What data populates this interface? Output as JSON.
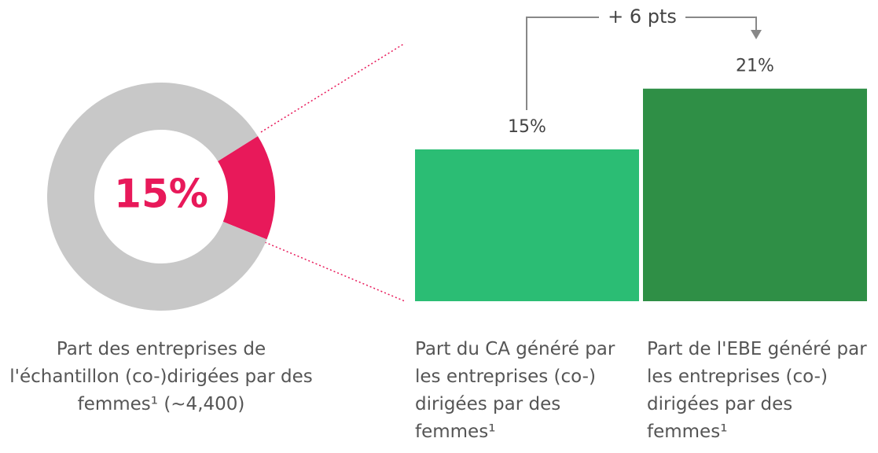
{
  "chart_data": [
    {
      "type": "donut",
      "values": [
        15,
        85
      ],
      "value_labels": [
        "15%",
        null
      ],
      "colors": [
        "#e8195a",
        "#c8c8c8"
      ],
      "caption": "Part des entreprises de l'échantillon (co-)dirigées par des femmes¹ (~4,400)"
    },
    {
      "type": "bar",
      "categories": [
        "Part du CA généré par les entreprises (co-) dirigées par des femmes¹",
        "Part de l'EBE généré par les entreprises (co-) dirigées par des femmes¹"
      ],
      "values": [
        15,
        21
      ],
      "value_labels": [
        "15%",
        "21%"
      ],
      "colors": [
        "#2bbd74",
        "#2f8f46"
      ],
      "annotation": "+ 6 pts"
    }
  ]
}
